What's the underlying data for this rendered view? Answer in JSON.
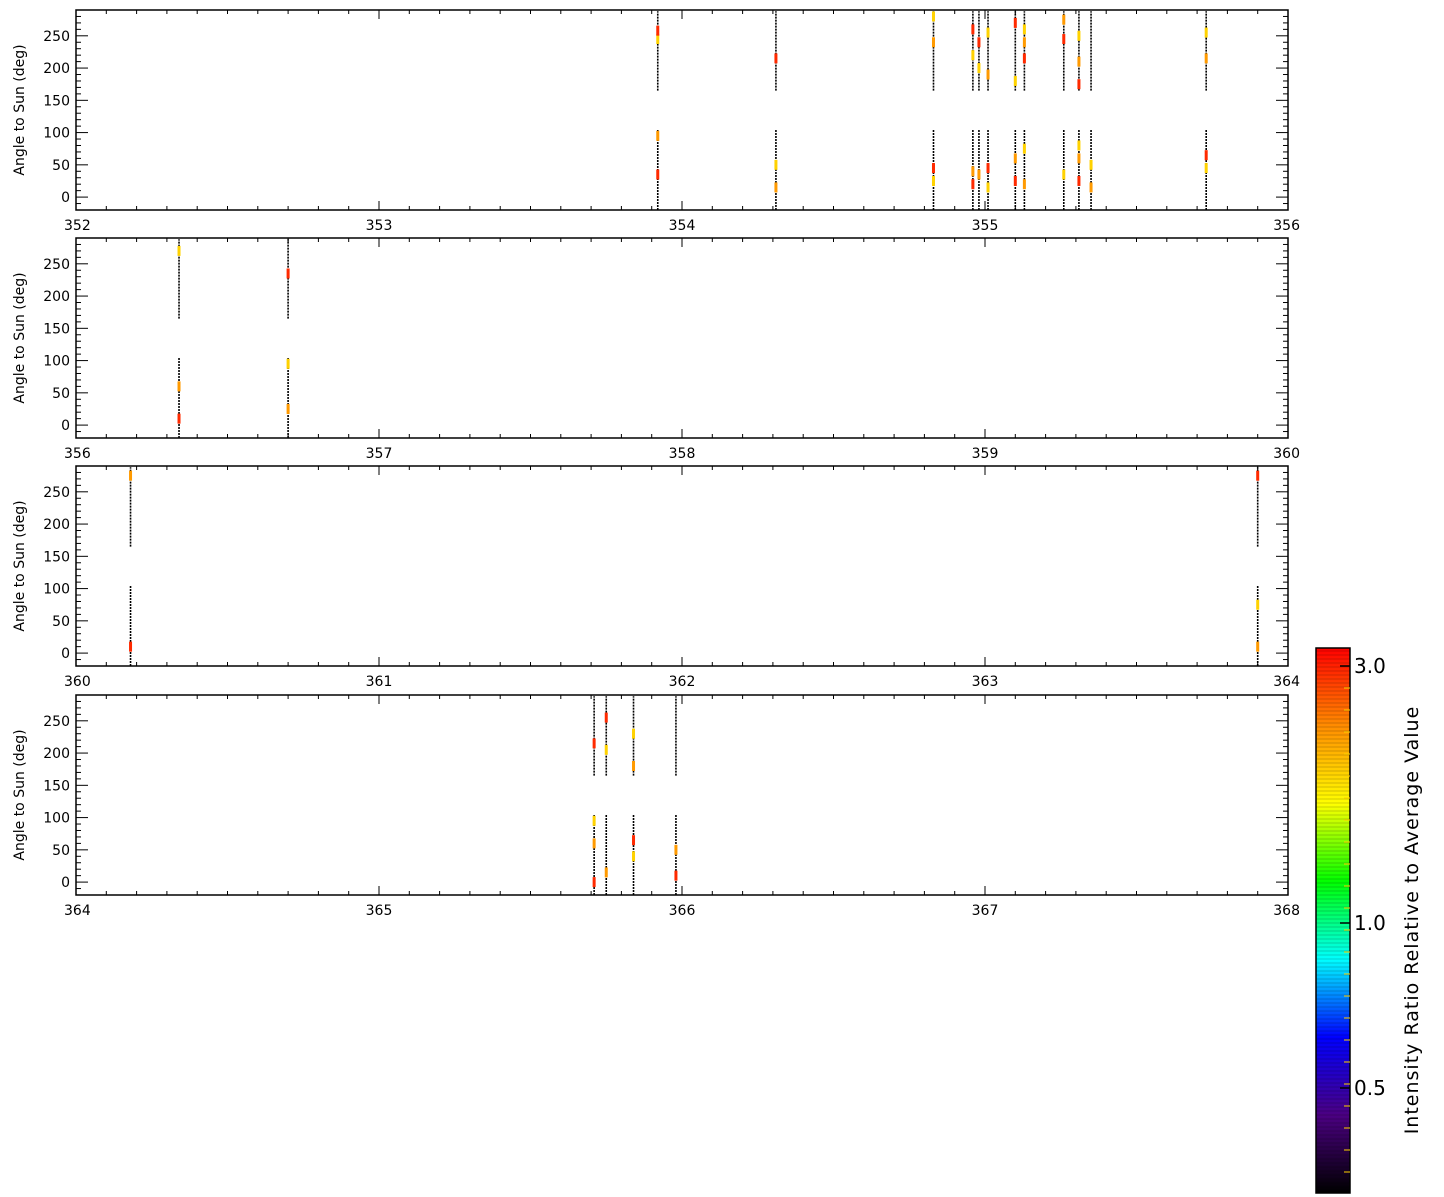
{
  "chart_data": [
    {
      "type": "scatter",
      "title": "",
      "ylabel": "Angle to Sun (deg)",
      "xlabel": "",
      "xlim": [
        352,
        356
      ],
      "ylim": [
        -20,
        290
      ],
      "xticks": [
        "352",
        "353",
        "354",
        "355",
        "356"
      ],
      "yticks": [
        "0",
        "50",
        "100",
        "150",
        "200",
        "250"
      ],
      "observations": [
        {
          "x": 353.92,
          "hits": [
            35,
            95,
            245,
            258
          ]
        },
        {
          "x": 354.31,
          "hits": [
            15,
            50,
            215
          ]
        },
        {
          "x": 354.83,
          "hits": [
            25,
            45,
            240,
            280
          ]
        },
        {
          "x": 354.96,
          "hits": [
            20,
            40,
            220,
            260
          ]
        },
        {
          "x": 354.98,
          "hits": [
            35,
            200,
            240
          ]
        },
        {
          "x": 355.01,
          "hits": [
            15,
            45,
            190,
            255
          ]
        },
        {
          "x": 355.1,
          "hits": [
            25,
            60,
            180,
            270
          ]
        },
        {
          "x": 355.13,
          "hits": [
            20,
            75,
            215,
            240,
            260
          ]
        },
        {
          "x": 355.26,
          "hits": [
            35,
            245,
            275
          ]
        },
        {
          "x": 355.31,
          "hits": [
            25,
            60,
            80,
            175,
            210,
            250
          ]
        },
        {
          "x": 355.35,
          "hits": [
            15,
            50
          ]
        },
        {
          "x": 355.73,
          "hits": [
            45,
            65,
            215,
            255
          ]
        }
      ]
    },
    {
      "type": "scatter",
      "title": "",
      "ylabel": "Angle to Sun (deg)",
      "xlabel": "",
      "xlim": [
        356,
        360
      ],
      "ylim": [
        -20,
        290
      ],
      "xticks": [
        "356",
        "357",
        "358",
        "359",
        "360"
      ],
      "yticks": [
        "0",
        "50",
        "100",
        "150",
        "200",
        "250"
      ],
      "observations": [
        {
          "x": 356.34,
          "hits": [
            10,
            60,
            270
          ]
        },
        {
          "x": 356.7,
          "hits": [
            25,
            95,
            235
          ]
        }
      ]
    },
    {
      "type": "scatter",
      "title": "",
      "ylabel": "Angle to Sun (deg)",
      "xlabel": "",
      "xlim": [
        360,
        364
      ],
      "ylim": [
        -20,
        290
      ],
      "xticks": [
        "360",
        "361",
        "362",
        "363",
        "364"
      ],
      "yticks": [
        "0",
        "50",
        "100",
        "150",
        "200",
        "250"
      ],
      "observations": [
        {
          "x": 360.18,
          "hits": [
            10,
            275
          ]
        },
        {
          "x": 363.9,
          "hits": [
            10,
            75,
            275
          ]
        }
      ]
    },
    {
      "type": "scatter",
      "title": "",
      "ylabel": "Angle to Sun (deg)",
      "xlabel": "",
      "xlim": [
        364,
        368
      ],
      "ylim": [
        -20,
        290
      ],
      "xticks": [
        "364",
        "365",
        "366",
        "367",
        "368"
      ],
      "yticks": [
        "0",
        "50",
        "100",
        "150",
        "200",
        "250"
      ],
      "observations": [
        {
          "x": 365.71,
          "hits": [
            0,
            60,
            95,
            215
          ]
        },
        {
          "x": 365.75,
          "hits": [
            15,
            205,
            255
          ]
        },
        {
          "x": 365.84,
          "hits": [
            40,
            65,
            180,
            230
          ]
        },
        {
          "x": 365.98,
          "hits": [
            10,
            50
          ]
        }
      ]
    }
  ],
  "colorbar": {
    "title": "Intensity Ratio Relative to Average Value",
    "tick_labels": [
      "3.0",
      "1.0",
      "0.5"
    ],
    "stops": [
      "#000000",
      "#4b0082",
      "#0000ff",
      "#00ffff",
      "#00ff00",
      "#ffff00",
      "#ff8c00",
      "#ff0000"
    ]
  },
  "colors": {
    "observation_line": "#000000",
    "hit_red": "#ff2a00",
    "hit_orange": "#ff9a00",
    "hit_yellow": "#ffd200"
  }
}
